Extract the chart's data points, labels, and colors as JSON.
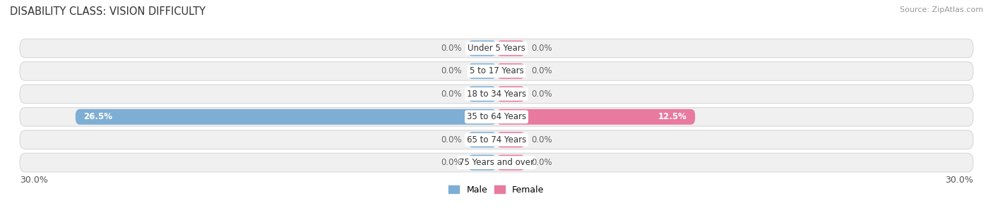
{
  "title": "DISABILITY CLASS: VISION DIFFICULTY",
  "source": "Source: ZipAtlas.com",
  "categories": [
    "Under 5 Years",
    "5 to 17 Years",
    "18 to 34 Years",
    "35 to 64 Years",
    "65 to 74 Years",
    "75 Years and over"
  ],
  "male_values": [
    0.0,
    0.0,
    0.0,
    26.5,
    0.0,
    0.0
  ],
  "female_values": [
    0.0,
    0.0,
    0.0,
    12.5,
    0.0,
    0.0
  ],
  "male_color": "#7eaed4",
  "female_color": "#e87a9f",
  "row_fill": "#f0f0f0",
  "row_edge": "#d8d8d8",
  "xlim": 30.0,
  "legend_male": "Male",
  "legend_female": "Female",
  "title_fontsize": 10.5,
  "source_fontsize": 8,
  "label_fontsize": 8.5,
  "axis_fontsize": 9
}
